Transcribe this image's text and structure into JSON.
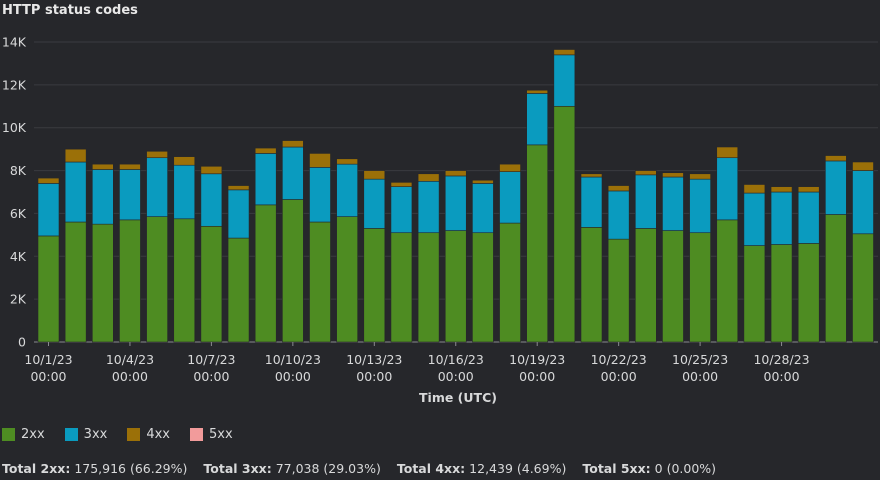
{
  "title": "HTTP status codes",
  "colors": {
    "2xx": "#4e8c22",
    "3xx": "#0a9bbf",
    "4xx": "#9b7008",
    "5xx": "#f29b9b",
    "grid": "#3a3b40",
    "axis": "#8a8b8f",
    "text": "#d8d9da"
  },
  "legend": [
    {
      "label": "2xx",
      "color": "#4e8c22"
    },
    {
      "label": "3xx",
      "color": "#0a9bbf"
    },
    {
      "label": "4xx",
      "color": "#9b7008"
    },
    {
      "label": "5xx",
      "color": "#f29b9b"
    }
  ],
  "totals": [
    {
      "label": "Total 2xx:",
      "value": "175,916 (66.29%)"
    },
    {
      "label": "Total 3xx:",
      "value": "77,038 (29.03%)"
    },
    {
      "label": "Total 4xx:",
      "value": "12,439 (4.69%)"
    },
    {
      "label": "Total 5xx:",
      "value": "0 (0.00%)"
    }
  ],
  "chart_data": {
    "type": "bar",
    "stacked": true,
    "title": "HTTP status codes",
    "xlabel": "Time (UTC)",
    "ylabel": "",
    "ylim": [
      0,
      14000
    ],
    "yticks": [
      0,
      2000,
      4000,
      6000,
      8000,
      10000,
      12000,
      14000
    ],
    "ytick_labels": [
      "0",
      "2K",
      "4K",
      "6K",
      "8K",
      "10K",
      "12K",
      "14K"
    ],
    "grid": true,
    "legend_position": "bottom-left",
    "categories": [
      "10/1",
      "10/2",
      "10/3",
      "10/4",
      "10/5",
      "10/6",
      "10/7",
      "10/8",
      "10/9",
      "10/10",
      "10/11",
      "10/12",
      "10/13",
      "10/14",
      "10/15",
      "10/16",
      "10/17",
      "10/18",
      "10/19",
      "10/20",
      "10/21",
      "10/22",
      "10/23",
      "10/24",
      "10/25",
      "10/26",
      "10/27",
      "10/28",
      "10/29",
      "10/30",
      "10/31"
    ],
    "xtick_labels": [
      {
        "index": 0,
        "line1": "10/1/23",
        "line2": "00:00"
      },
      {
        "index": 3,
        "line1": "10/4/23",
        "line2": "00:00"
      },
      {
        "index": 6,
        "line1": "10/7/23",
        "line2": "00:00"
      },
      {
        "index": 9,
        "line1": "10/10/23",
        "line2": "00:00"
      },
      {
        "index": 12,
        "line1": "10/13/23",
        "line2": "00:00"
      },
      {
        "index": 15,
        "line1": "10/16/23",
        "line2": "00:00"
      },
      {
        "index": 18,
        "line1": "10/19/23",
        "line2": "00:00"
      },
      {
        "index": 21,
        "line1": "10/22/23",
        "line2": "00:00"
      },
      {
        "index": 24,
        "line1": "10/25/23",
        "line2": "00:00"
      },
      {
        "index": 27,
        "line1": "10/28/23",
        "line2": "00:00"
      }
    ],
    "series": [
      {
        "name": "2xx",
        "values": [
          4950,
          5600,
          5500,
          5700,
          5850,
          5750,
          5400,
          4850,
          6400,
          6650,
          5600,
          5850,
          5300,
          5100,
          5100,
          5200,
          5100,
          5550,
          9200,
          11000,
          5350,
          4800,
          5300,
          5200,
          5100,
          5700,
          4500,
          4550,
          4600,
          5950,
          5050
        ]
      },
      {
        "name": "3xx",
        "values": [
          2450,
          2800,
          2550,
          2350,
          2750,
          2500,
          2450,
          2250,
          2400,
          2450,
          2550,
          2450,
          2300,
          2150,
          2400,
          2550,
          2300,
          2400,
          2400,
          2400,
          2350,
          2250,
          2500,
          2500,
          2500,
          2900,
          2450,
          2450,
          2400,
          2500,
          2950
        ]
      },
      {
        "name": "4xx",
        "values": [
          250,
          600,
          250,
          250,
          300,
          400,
          350,
          200,
          250,
          300,
          650,
          250,
          400,
          200,
          350,
          250,
          150,
          350,
          150,
          250,
          150,
          250,
          200,
          200,
          250,
          500,
          400,
          250,
          250,
          250,
          400
        ]
      },
      {
        "name": "5xx",
        "values": [
          0,
          0,
          0,
          0,
          0,
          0,
          0,
          0,
          0,
          0,
          0,
          0,
          0,
          0,
          0,
          0,
          0,
          0,
          0,
          0,
          0,
          0,
          0,
          0,
          0,
          0,
          0,
          0,
          0,
          0,
          0
        ]
      }
    ]
  }
}
